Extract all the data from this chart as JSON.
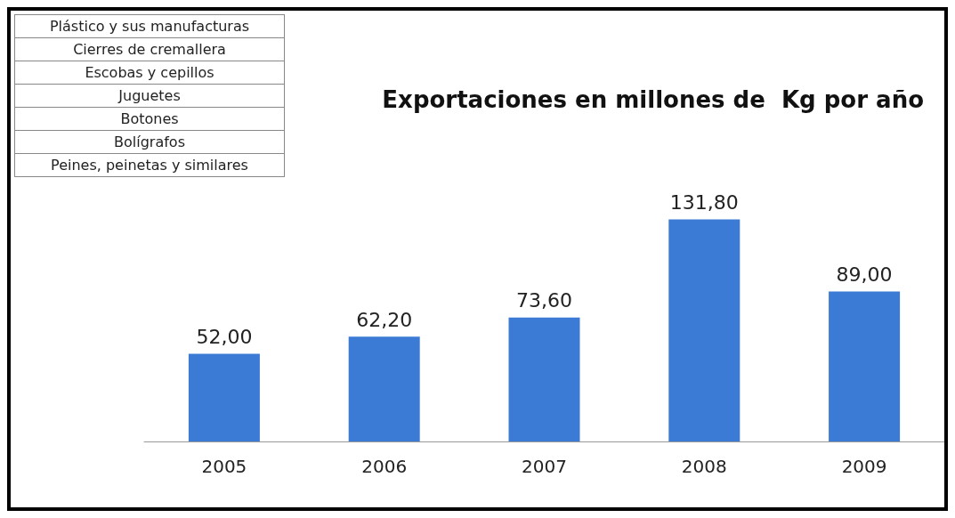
{
  "chart_data": {
    "type": "bar",
    "title": "Exportaciones en millones de  Kg por año",
    "categories": [
      "2005",
      "2006",
      "2007",
      "2008",
      "2009"
    ],
    "values": [
      52.0,
      62.2,
      73.6,
      131.8,
      89.0
    ],
    "value_labels": [
      "52,00",
      "62,20",
      "73,60",
      "131,80",
      "89,00"
    ],
    "color": "#3b7bd6",
    "grid": false,
    "annotations": [
      "Plástico y sus manufacturas",
      "Cierres de cremallera",
      "Escobas y cepillos",
      "Juguetes",
      "Botones",
      "Bolígrafos",
      "Peines, peinetas y similares"
    ]
  }
}
